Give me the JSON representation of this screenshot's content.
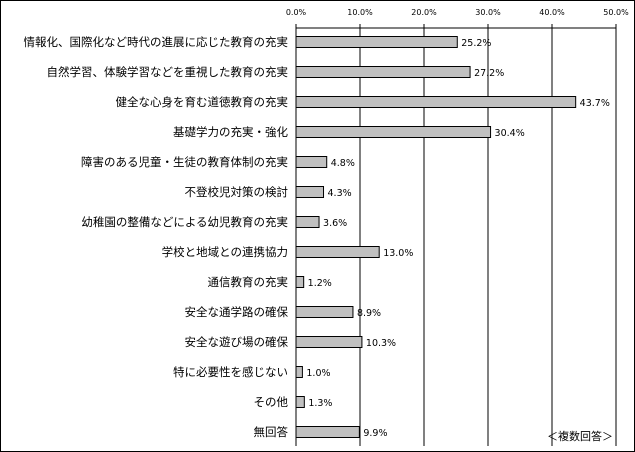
{
  "chart_data": {
    "type": "bar",
    "orientation": "horizontal",
    "categories": [
      "情報化、国際化など時代の進展に応じた教育の充実",
      "自然学習、体験学習などを重視した教育の充実",
      "健全な心身を育む道徳教育の充実",
      "基礎学力の充実・強化",
      "障害のある児童・生徒の教育体制の充実",
      "不登校児対策の検討",
      "幼稚園の整備などによる幼児教育の充実",
      "学校と地域との連携協力",
      "通信教育の充実",
      "安全な通学路の確保",
      "安全な遊び場の確保",
      "特に必要性を感じない",
      "その他",
      "無回答"
    ],
    "values": [
      25.2,
      27.2,
      43.7,
      30.4,
      4.8,
      4.3,
      3.6,
      13.0,
      1.2,
      8.9,
      10.3,
      1.0,
      1.3,
      9.9
    ],
    "value_labels": [
      "25.2%",
      "27.2%",
      "43.7%",
      "30.4%",
      "4.8%",
      "4.3%",
      "3.6%",
      "13.0%",
      "1.2%",
      "8.9%",
      "10.3%",
      "1.0%",
      "1.3%",
      "9.9%"
    ],
    "xlim": [
      0,
      50
    ],
    "xticks": [
      0,
      10,
      20,
      30,
      40,
      50
    ],
    "xtick_labels": [
      "0.0%",
      "10.0%",
      "20.0%",
      "30.0%",
      "40.0%",
      "50.0%"
    ],
    "axis_position": "top",
    "grid": "vertical",
    "bar_color": "#c0c0c0",
    "bar_edge_color": "#000000",
    "note": "＜複数回答＞"
  }
}
